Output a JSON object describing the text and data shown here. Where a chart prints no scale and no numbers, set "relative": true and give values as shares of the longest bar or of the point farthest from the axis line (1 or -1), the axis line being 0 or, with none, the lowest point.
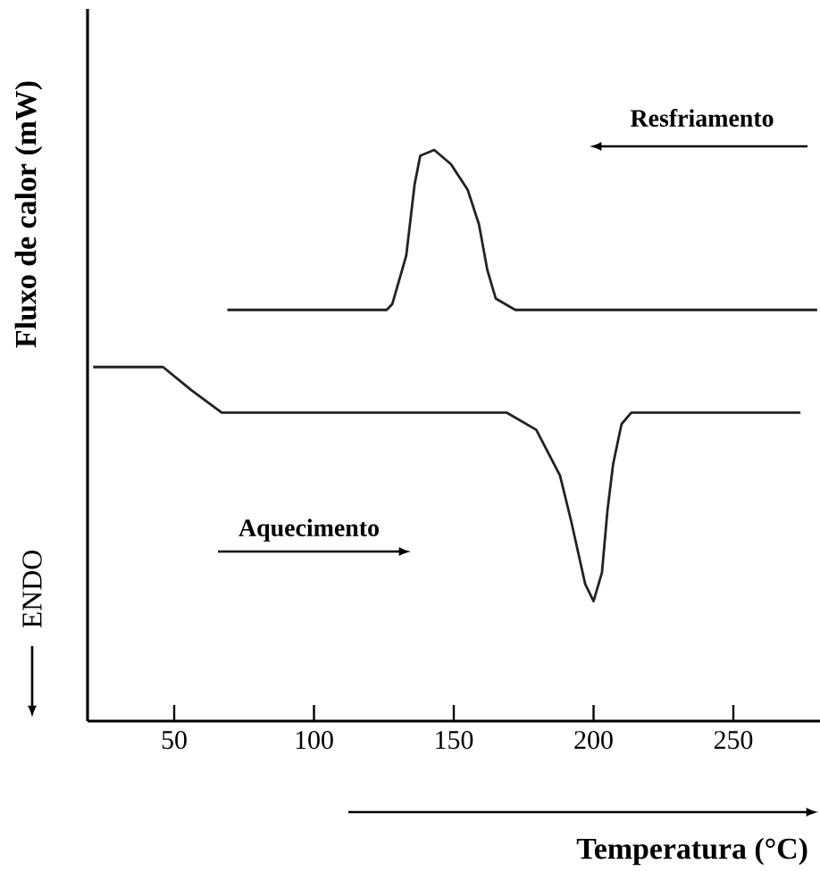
{
  "chart_data": {
    "type": "line",
    "relative": true,
    "xlabel": "Temperatura (°C)",
    "ylabel": "Fluxo de calor (mW)",
    "xlim": [
      19,
      281
    ],
    "xticks": [
      50,
      100,
      150,
      200,
      250
    ],
    "marker": "none",
    "line_style": "solid",
    "annotations": [
      "Resfriamento",
      "Aquecimento",
      "ENDO"
    ],
    "series": [
      {
        "color": "#222222",
        "x": [
          69,
          100,
          126,
          128,
          133,
          136,
          138,
          143,
          149,
          155,
          159,
          162,
          165,
          172,
          220,
          280
        ],
        "values": [
          0.72,
          0.72,
          0.72,
          0.73,
          0.815,
          0.94,
          0.99,
          1.0,
          0.975,
          0.93,
          0.87,
          0.79,
          0.74,
          0.72,
          0.72,
          0.72
        ]
      },
      {
        "color": "#222222",
        "x": [
          21,
          46,
          56,
          67,
          100,
          140,
          169,
          179.5,
          188,
          192,
          197,
          200,
          203,
          205,
          207,
          210,
          213.5,
          274
        ],
        "values": [
          0.62,
          0.62,
          0.58,
          0.54,
          0.54,
          0.54,
          0.54,
          0.51,
          0.43,
          0.35,
          0.24,
          0.21,
          0.26,
          0.37,
          0.45,
          0.52,
          0.54,
          0.54
        ]
      }
    ]
  }
}
